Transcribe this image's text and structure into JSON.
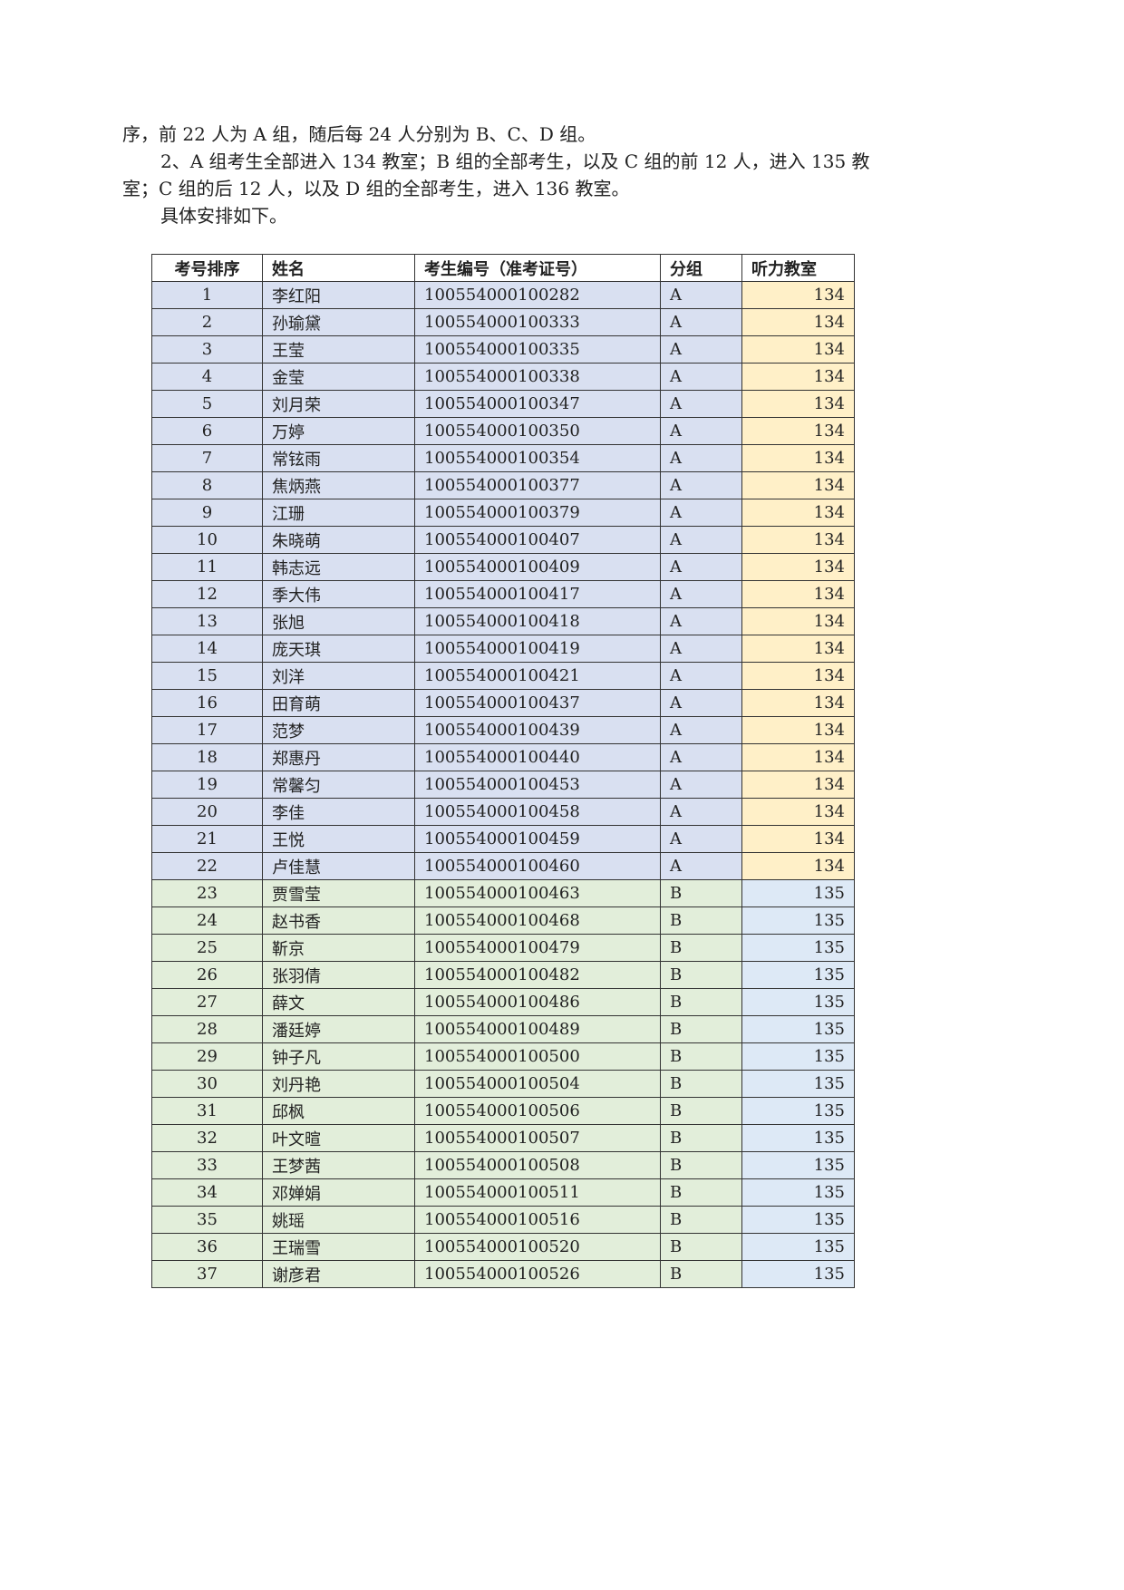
{
  "paragraphs": [
    "序，前 22 人为 A 组，随后每 24 人分别为 B、C、D 组。",
    "2、A 组考生全部进入 134 教室；B 组的全部考生，以及 C 组的前 12 人，进入 135 教室；C 组的后 12 人，以及 D 组的全部考生，进入 136 教室。",
    "具体安排如下。"
  ],
  "table": {
    "headers": [
      "考号排序",
      "姓名",
      "考生编号（准考证号）",
      "分组",
      "听力教室"
    ],
    "colors": {
      "A_row": "#d9e0f1",
      "B_row": "#e2eeda",
      "room_134": "#fff0c8",
      "room_135": "#dde9f6"
    },
    "rows": [
      [
        "1",
        "李红阳",
        "100554000100282",
        "A",
        "134"
      ],
      [
        "2",
        "孙瑜黛",
        "100554000100333",
        "A",
        "134"
      ],
      [
        "3",
        "王莹",
        "100554000100335",
        "A",
        "134"
      ],
      [
        "4",
        "金莹",
        "100554000100338",
        "A",
        "134"
      ],
      [
        "5",
        "刘月荣",
        "100554000100347",
        "A",
        "134"
      ],
      [
        "6",
        "万婷",
        "100554000100350",
        "A",
        "134"
      ],
      [
        "7",
        "常铉雨",
        "100554000100354",
        "A",
        "134"
      ],
      [
        "8",
        "焦炳燕",
        "100554000100377",
        "A",
        "134"
      ],
      [
        "9",
        "江珊",
        "100554000100379",
        "A",
        "134"
      ],
      [
        "10",
        "朱晓萌",
        "100554000100407",
        "A",
        "134"
      ],
      [
        "11",
        "韩志远",
        "100554000100409",
        "A",
        "134"
      ],
      [
        "12",
        "季大伟",
        "100554000100417",
        "A",
        "134"
      ],
      [
        "13",
        "张旭",
        "100554000100418",
        "A",
        "134"
      ],
      [
        "14",
        "庞天琪",
        "100554000100419",
        "A",
        "134"
      ],
      [
        "15",
        "刘洋",
        "100554000100421",
        "A",
        "134"
      ],
      [
        "16",
        "田育萌",
        "100554000100437",
        "A",
        "134"
      ],
      [
        "17",
        "范梦",
        "100554000100439",
        "A",
        "134"
      ],
      [
        "18",
        "郑惠丹",
        "100554000100440",
        "A",
        "134"
      ],
      [
        "19",
        "常馨匀",
        "100554000100453",
        "A",
        "134"
      ],
      [
        "20",
        "李佳",
        "100554000100458",
        "A",
        "134"
      ],
      [
        "21",
        "王悦",
        "100554000100459",
        "A",
        "134"
      ],
      [
        "22",
        "卢佳慧",
        "100554000100460",
        "A",
        "134"
      ],
      [
        "23",
        "贾雪莹",
        "100554000100463",
        "B",
        "135"
      ],
      [
        "24",
        "赵书香",
        "100554000100468",
        "B",
        "135"
      ],
      [
        "25",
        "靳京",
        "100554000100479",
        "B",
        "135"
      ],
      [
        "26",
        "张羽倩",
        "100554000100482",
        "B",
        "135"
      ],
      [
        "27",
        "薛文",
        "100554000100486",
        "B",
        "135"
      ],
      [
        "28",
        "潘廷婷",
        "100554000100489",
        "B",
        "135"
      ],
      [
        "29",
        "钟子凡",
        "100554000100500",
        "B",
        "135"
      ],
      [
        "30",
        "刘丹艳",
        "100554000100504",
        "B",
        "135"
      ],
      [
        "31",
        "邱枫",
        "100554000100506",
        "B",
        "135"
      ],
      [
        "32",
        "叶文暄",
        "100554000100507",
        "B",
        "135"
      ],
      [
        "33",
        "王梦茜",
        "100554000100508",
        "B",
        "135"
      ],
      [
        "34",
        "邓婵娟",
        "100554000100511",
        "B",
        "135"
      ],
      [
        "35",
        "姚瑶",
        "100554000100516",
        "B",
        "135"
      ],
      [
        "36",
        "王瑞雪",
        "100554000100520",
        "B",
        "135"
      ],
      [
        "37",
        "谢彦君",
        "100554000100526",
        "B",
        "135"
      ]
    ]
  }
}
